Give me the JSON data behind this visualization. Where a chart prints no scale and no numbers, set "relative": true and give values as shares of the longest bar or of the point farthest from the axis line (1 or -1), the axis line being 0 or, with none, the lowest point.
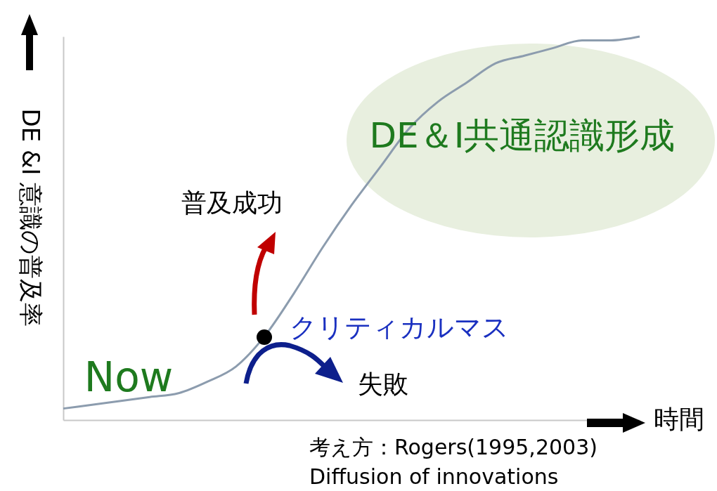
{
  "chart_data": {
    "type": "line",
    "relative": true,
    "ylabel": "DE &I 意識の普及率",
    "xlabel": "時間",
    "categories": [
      null,
      null,
      null,
      null,
      null,
      null,
      null,
      null,
      null,
      null,
      null,
      null,
      null,
      null,
      null,
      null,
      null,
      null,
      null,
      null,
      null
    ],
    "series": [
      {
        "color": "#8c9cae",
        "values": [
          0.03,
          0.04,
          0.05,
          0.06,
          0.07,
          0.1,
          0.14,
          0.22,
          0.33,
          0.45,
          0.56,
          0.66,
          0.76,
          0.83,
          0.88,
          0.93,
          0.95,
          0.97,
          0.99,
          0.99,
          1
        ]
      }
    ],
    "annotations": [
      "DE＆I共通認識形成",
      "普及成功",
      "クリティカルマス",
      "失敗",
      "Now",
      "考え方：Rogers(1995,2003)",
      "Diffusion of innovations"
    ],
    "grid": false
  }
}
